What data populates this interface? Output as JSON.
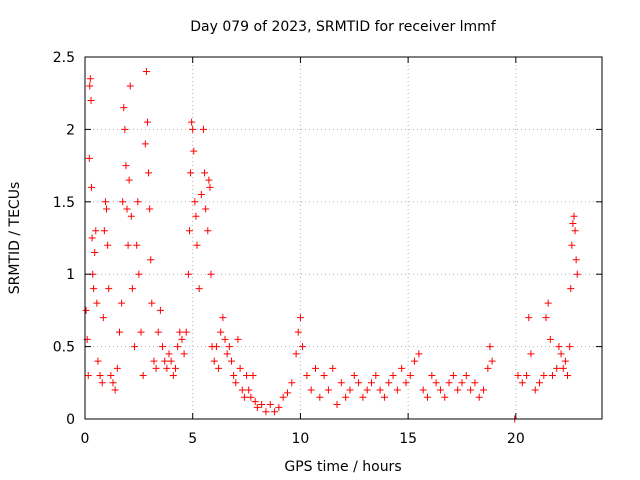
{
  "chart_data": {
    "type": "scatter",
    "title": "Day 079 of 2023, SRMTID for receiver lmmf",
    "xlabel": "GPS time / hours",
    "ylabel": "SRMTID / TECUs",
    "xlim": [
      0,
      24
    ],
    "ylim": [
      0,
      2.5
    ],
    "x_ticks": [
      0,
      5,
      10,
      15,
      20
    ],
    "y_ticks": [
      0,
      0.5,
      1,
      1.5,
      2,
      2.5
    ],
    "x_tick_labels": [
      "0",
      "5",
      "10",
      "15",
      "20"
    ],
    "y_tick_labels": [
      "0",
      "0.5",
      "1",
      "1.5",
      "2",
      "2.5"
    ],
    "grid": true,
    "marker": "+",
    "marker_color": "#ff0000",
    "series": [
      {
        "name": "SRMTID",
        "points": [
          [
            0.05,
            0.75
          ],
          [
            0.1,
            0.55
          ],
          [
            0.15,
            0.3
          ],
          [
            0.2,
            1.8
          ],
          [
            0.22,
            2.3
          ],
          [
            0.25,
            2.35
          ],
          [
            0.28,
            2.2
          ],
          [
            0.3,
            1.6
          ],
          [
            0.33,
            1.25
          ],
          [
            0.36,
            1.0
          ],
          [
            0.4,
            0.9
          ],
          [
            0.45,
            1.15
          ],
          [
            0.5,
            1.3
          ],
          [
            0.55,
            0.8
          ],
          [
            0.6,
            0.4
          ],
          [
            0.7,
            0.3
          ],
          [
            0.8,
            0.25
          ],
          [
            0.85,
            0.7
          ],
          [
            0.9,
            1.3
          ],
          [
            0.95,
            1.5
          ],
          [
            1.0,
            1.45
          ],
          [
            1.05,
            1.2
          ],
          [
            1.1,
            0.9
          ],
          [
            1.2,
            0.3
          ],
          [
            1.3,
            0.25
          ],
          [
            1.4,
            0.2
          ],
          [
            1.5,
            0.35
          ],
          [
            1.6,
            0.6
          ],
          [
            1.7,
            0.8
          ],
          [
            1.75,
            1.5
          ],
          [
            1.8,
            2.15
          ],
          [
            1.85,
            2.0
          ],
          [
            1.9,
            1.75
          ],
          [
            1.95,
            1.45
          ],
          [
            2.0,
            1.2
          ],
          [
            2.05,
            1.65
          ],
          [
            2.1,
            2.3
          ],
          [
            2.15,
            1.4
          ],
          [
            2.2,
            0.9
          ],
          [
            2.3,
            0.5
          ],
          [
            2.4,
            1.2
          ],
          [
            2.45,
            1.5
          ],
          [
            2.5,
            1.0
          ],
          [
            2.6,
            0.6
          ],
          [
            2.7,
            0.3
          ],
          [
            2.8,
            1.9
          ],
          [
            2.85,
            2.4
          ],
          [
            2.9,
            2.05
          ],
          [
            2.95,
            1.7
          ],
          [
            3.0,
            1.45
          ],
          [
            3.05,
            1.1
          ],
          [
            3.1,
            0.8
          ],
          [
            3.2,
            0.4
          ],
          [
            3.3,
            0.35
          ],
          [
            3.4,
            0.6
          ],
          [
            3.5,
            0.75
          ],
          [
            3.6,
            0.5
          ],
          [
            3.7,
            0.4
          ],
          [
            3.8,
            0.35
          ],
          [
            3.9,
            0.45
          ],
          [
            4.0,
            0.4
          ],
          [
            4.1,
            0.3
          ],
          [
            4.2,
            0.35
          ],
          [
            4.3,
            0.5
          ],
          [
            4.4,
            0.6
          ],
          [
            4.5,
            0.55
          ],
          [
            4.6,
            0.45
          ],
          [
            4.7,
            0.6
          ],
          [
            4.8,
            1.0
          ],
          [
            4.85,
            1.3
          ],
          [
            4.9,
            1.7
          ],
          [
            4.95,
            2.05
          ],
          [
            5.0,
            2.0
          ],
          [
            5.05,
            1.85
          ],
          [
            5.1,
            1.5
          ],
          [
            5.15,
            1.4
          ],
          [
            5.2,
            1.2
          ],
          [
            5.3,
            0.9
          ],
          [
            5.4,
            1.55
          ],
          [
            5.5,
            2.0
          ],
          [
            5.55,
            1.7
          ],
          [
            5.6,
            1.45
          ],
          [
            5.7,
            1.3
          ],
          [
            5.75,
            1.65
          ],
          [
            5.8,
            1.6
          ],
          [
            5.85,
            1.0
          ],
          [
            5.9,
            0.5
          ],
          [
            6.0,
            0.4
          ],
          [
            6.1,
            0.5
          ],
          [
            6.2,
            0.35
          ],
          [
            6.3,
            0.6
          ],
          [
            6.4,
            0.7
          ],
          [
            6.5,
            0.55
          ],
          [
            6.6,
            0.45
          ],
          [
            6.7,
            0.5
          ],
          [
            6.8,
            0.4
          ],
          [
            6.9,
            0.3
          ],
          [
            7.0,
            0.25
          ],
          [
            7.1,
            0.55
          ],
          [
            7.2,
            0.35
          ],
          [
            7.3,
            0.2
          ],
          [
            7.4,
            0.15
          ],
          [
            7.5,
            0.3
          ],
          [
            7.6,
            0.2
          ],
          [
            7.7,
            0.15
          ],
          [
            7.8,
            0.3
          ],
          [
            7.9,
            0.12
          ],
          [
            8.0,
            0.08
          ],
          [
            8.2,
            0.1
          ],
          [
            8.4,
            0.05
          ],
          [
            8.6,
            0.1
          ],
          [
            8.8,
            0.05
          ],
          [
            9.0,
            0.08
          ],
          [
            9.2,
            0.15
          ],
          [
            9.4,
            0.18
          ],
          [
            9.6,
            0.25
          ],
          [
            9.8,
            0.45
          ],
          [
            9.9,
            0.6
          ],
          [
            10.0,
            0.7
          ],
          [
            10.1,
            0.5
          ],
          [
            10.3,
            0.3
          ],
          [
            10.5,
            0.2
          ],
          [
            10.7,
            0.35
          ],
          [
            10.9,
            0.15
          ],
          [
            11.1,
            0.3
          ],
          [
            11.3,
            0.2
          ],
          [
            11.5,
            0.35
          ],
          [
            11.7,
            0.1
          ],
          [
            11.9,
            0.25
          ],
          [
            12.1,
            0.15
          ],
          [
            12.3,
            0.2
          ],
          [
            12.5,
            0.3
          ],
          [
            12.7,
            0.25
          ],
          [
            12.9,
            0.15
          ],
          [
            13.1,
            0.2
          ],
          [
            13.3,
            0.25
          ],
          [
            13.5,
            0.3
          ],
          [
            13.7,
            0.2
          ],
          [
            13.9,
            0.15
          ],
          [
            14.1,
            0.25
          ],
          [
            14.3,
            0.3
          ],
          [
            14.5,
            0.2
          ],
          [
            14.7,
            0.35
          ],
          [
            14.9,
            0.25
          ],
          [
            15.1,
            0.3
          ],
          [
            15.3,
            0.4
          ],
          [
            15.5,
            0.45
          ],
          [
            15.7,
            0.2
          ],
          [
            15.9,
            0.15
          ],
          [
            16.1,
            0.3
          ],
          [
            16.3,
            0.25
          ],
          [
            16.5,
            0.2
          ],
          [
            16.7,
            0.15
          ],
          [
            16.9,
            0.25
          ],
          [
            17.1,
            0.3
          ],
          [
            17.3,
            0.2
          ],
          [
            17.5,
            0.25
          ],
          [
            17.7,
            0.3
          ],
          [
            17.9,
            0.2
          ],
          [
            18.1,
            0.25
          ],
          [
            18.3,
            0.15
          ],
          [
            18.5,
            0.2
          ],
          [
            18.7,
            0.35
          ],
          [
            18.8,
            0.5
          ],
          [
            18.9,
            0.4
          ],
          [
            19.95,
            0.0
          ],
          [
            20.1,
            0.3
          ],
          [
            20.3,
            0.25
          ],
          [
            20.5,
            0.3
          ],
          [
            20.6,
            0.7
          ],
          [
            20.7,
            0.45
          ],
          [
            20.9,
            0.2
          ],
          [
            21.1,
            0.25
          ],
          [
            21.3,
            0.3
          ],
          [
            21.4,
            0.7
          ],
          [
            21.5,
            0.8
          ],
          [
            21.6,
            0.55
          ],
          [
            21.7,
            0.3
          ],
          [
            21.9,
            0.35
          ],
          [
            22.0,
            0.5
          ],
          [
            22.1,
            0.45
          ],
          [
            22.2,
            0.35
          ],
          [
            22.3,
            0.4
          ],
          [
            22.4,
            0.3
          ],
          [
            22.5,
            0.5
          ],
          [
            22.55,
            0.9
          ],
          [
            22.6,
            1.2
          ],
          [
            22.65,
            1.35
          ],
          [
            22.7,
            1.4
          ],
          [
            22.75,
            1.3
          ],
          [
            22.8,
            1.1
          ],
          [
            22.85,
            1.0
          ]
        ]
      }
    ]
  }
}
